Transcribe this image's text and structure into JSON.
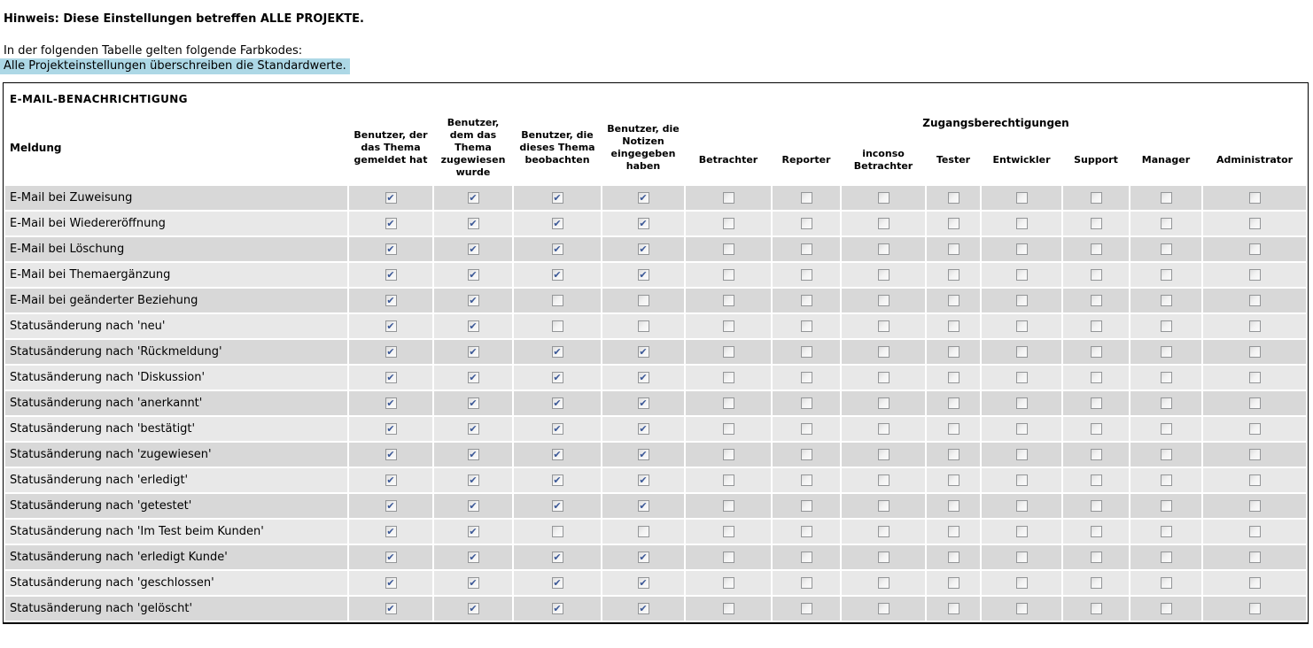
{
  "page": {
    "notice": "Hinweis: Diese Einstellungen betreffen ALLE PROJEKTE.",
    "colorcode_intro": "In der folgenden Tabelle gelten folgende Farbkodes:",
    "colorcode_item": "Alle Projekteinstellungen überschreiben die Standardwerte.",
    "colors": {
      "legend_highlight": "#add8e6",
      "row_dark": "#d8d8d8",
      "row_light": "#e8e8e8",
      "checkmark": "#3a5796"
    }
  },
  "table": {
    "title": "E-MAIL-BENACHRICHTIGUNG",
    "meldung_header": "Meldung",
    "user_columns": [
      "Benutzer, der das Thema gemeldet hat",
      "Benutzer, dem das Thema zugewiesen wurde",
      "Benutzer, die dieses Thema beobachten",
      "Benutzer, die Notizen eingegeben haben"
    ],
    "access_group_header": "Zugangsberechtigungen",
    "access_columns": [
      "Betrachter",
      "Reporter",
      "inconso Betrachter",
      "Tester",
      "Entwickler",
      "Support",
      "Manager",
      "Administrator"
    ],
    "rows": [
      {
        "label": "E-Mail bei Zuweisung",
        "checks": [
          1,
          1,
          1,
          1,
          0,
          0,
          0,
          0,
          0,
          0,
          0,
          0
        ]
      },
      {
        "label": "E-Mail bei Wiedereröffnung",
        "checks": [
          1,
          1,
          1,
          1,
          0,
          0,
          0,
          0,
          0,
          0,
          0,
          0
        ]
      },
      {
        "label": "E-Mail bei Löschung",
        "checks": [
          1,
          1,
          1,
          1,
          0,
          0,
          0,
          0,
          0,
          0,
          0,
          0
        ]
      },
      {
        "label": "E-Mail bei Themaergänzung",
        "checks": [
          1,
          1,
          1,
          1,
          0,
          0,
          0,
          0,
          0,
          0,
          0,
          0
        ]
      },
      {
        "label": "E-Mail bei geänderter Beziehung",
        "checks": [
          1,
          1,
          0,
          0,
          0,
          0,
          0,
          0,
          0,
          0,
          0,
          0
        ]
      },
      {
        "label": "Statusänderung nach 'neu'",
        "checks": [
          1,
          1,
          0,
          0,
          0,
          0,
          0,
          0,
          0,
          0,
          0,
          0
        ]
      },
      {
        "label": "Statusänderung nach 'Rückmeldung'",
        "checks": [
          1,
          1,
          1,
          1,
          0,
          0,
          0,
          0,
          0,
          0,
          0,
          0
        ]
      },
      {
        "label": "Statusänderung nach 'Diskussion'",
        "checks": [
          1,
          1,
          1,
          1,
          0,
          0,
          0,
          0,
          0,
          0,
          0,
          0
        ]
      },
      {
        "label": "Statusänderung nach 'anerkannt'",
        "checks": [
          1,
          1,
          1,
          1,
          0,
          0,
          0,
          0,
          0,
          0,
          0,
          0
        ]
      },
      {
        "label": "Statusänderung nach 'bestätigt'",
        "checks": [
          1,
          1,
          1,
          1,
          0,
          0,
          0,
          0,
          0,
          0,
          0,
          0
        ]
      },
      {
        "label": "Statusänderung nach 'zugewiesen'",
        "checks": [
          1,
          1,
          1,
          1,
          0,
          0,
          0,
          0,
          0,
          0,
          0,
          0
        ]
      },
      {
        "label": "Statusänderung nach 'erledigt'",
        "checks": [
          1,
          1,
          1,
          1,
          0,
          0,
          0,
          0,
          0,
          0,
          0,
          0
        ]
      },
      {
        "label": "Statusänderung nach 'getestet'",
        "checks": [
          1,
          1,
          1,
          1,
          0,
          0,
          0,
          0,
          0,
          0,
          0,
          0
        ]
      },
      {
        "label": "Statusänderung nach 'Im Test beim Kunden'",
        "checks": [
          1,
          1,
          0,
          0,
          0,
          0,
          0,
          0,
          0,
          0,
          0,
          0
        ]
      },
      {
        "label": "Statusänderung nach 'erledigt Kunde'",
        "checks": [
          1,
          1,
          1,
          1,
          0,
          0,
          0,
          0,
          0,
          0,
          0,
          0
        ]
      },
      {
        "label": "Statusänderung nach 'geschlossen'",
        "checks": [
          1,
          1,
          1,
          1,
          0,
          0,
          0,
          0,
          0,
          0,
          0,
          0
        ]
      },
      {
        "label": "Statusänderung nach 'gelöscht'",
        "checks": [
          1,
          1,
          1,
          1,
          0,
          0,
          0,
          0,
          0,
          0,
          0,
          0
        ]
      }
    ]
  }
}
